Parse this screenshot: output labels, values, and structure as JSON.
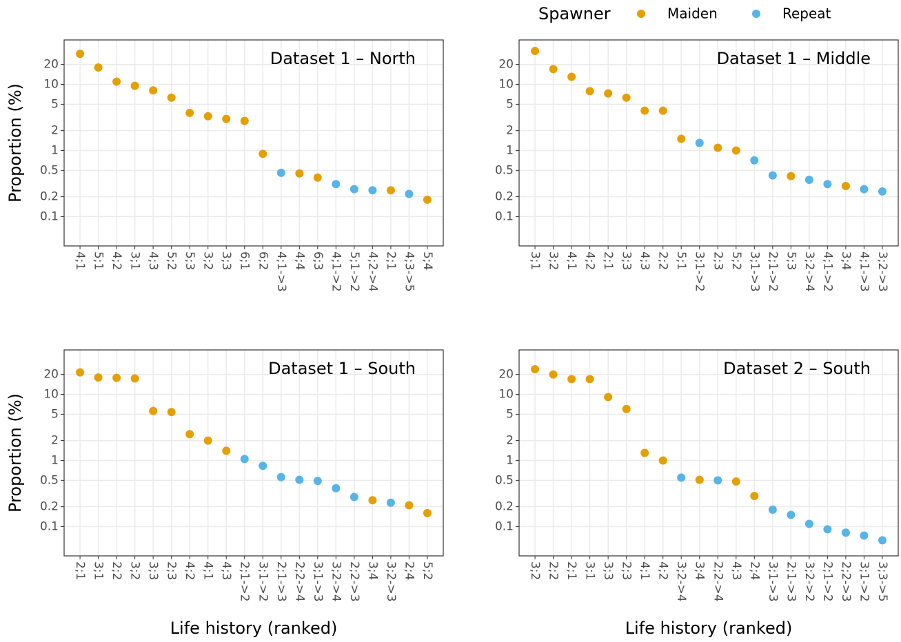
{
  "legend": {
    "title": "Spawner",
    "entries": [
      {
        "name": "Maiden",
        "color": "#E69F00"
      },
      {
        "name": "Repeat",
        "color": "#56B4E9"
      }
    ]
  },
  "chart_data": [
    {
      "type": "dot",
      "title": "Dataset 1 – North",
      "ylabel": "Proportion (%)",
      "categories": [
        "4;1",
        "5;1",
        "4;2",
        "3;1",
        "4;3",
        "5;2",
        "5;3",
        "3;2",
        "3;3",
        "6;1",
        "6;2",
        "4;1->3",
        "4;4",
        "6;3",
        "4;1->2",
        "5;1->2",
        "4;2->4",
        "2;1",
        "4;3->5",
        "5;4"
      ],
      "values": [
        29,
        18,
        11,
        9.5,
        8.1,
        6.3,
        3.7,
        3.3,
        3.0,
        2.8,
        0.89,
        0.46,
        0.45,
        0.39,
        0.31,
        0.26,
        0.25,
        0.25,
        0.22,
        0.18
      ],
      "spawner": [
        "Maiden",
        "Maiden",
        "Maiden",
        "Maiden",
        "Maiden",
        "Maiden",
        "Maiden",
        "Maiden",
        "Maiden",
        "Maiden",
        "Maiden",
        "Repeat",
        "Maiden",
        "Maiden",
        "Repeat",
        "Repeat",
        "Repeat",
        "Maiden",
        "Repeat",
        "Maiden"
      ],
      "ylim": [
        0.036,
        47
      ],
      "yticks": [
        0.1,
        0.2,
        0.5,
        1,
        2,
        5,
        10,
        20
      ],
      "log_y": true,
      "grid": true
    },
    {
      "type": "dot",
      "title": "Dataset 1 – Middle",
      "categories": [
        "3;1",
        "3;2",
        "4;1",
        "4;2",
        "2;1",
        "3;3",
        "4;3",
        "2;2",
        "5;1",
        "3;1->2",
        "2;3",
        "5;2",
        "3;1->3",
        "2;1->2",
        "5;3",
        "3;2->4",
        "4;1->2",
        "3;4",
        "4;1->3",
        "3;2->3"
      ],
      "values": [
        32,
        17,
        13,
        7.9,
        7.3,
        6.3,
        4.0,
        4.0,
        1.5,
        1.3,
        1.1,
        1.0,
        0.71,
        0.42,
        0.41,
        0.36,
        0.31,
        0.29,
        0.26,
        0.24
      ],
      "spawner": [
        "Maiden",
        "Maiden",
        "Maiden",
        "Maiden",
        "Maiden",
        "Maiden",
        "Maiden",
        "Maiden",
        "Maiden",
        "Repeat",
        "Maiden",
        "Maiden",
        "Repeat",
        "Repeat",
        "Maiden",
        "Repeat",
        "Repeat",
        "Maiden",
        "Repeat",
        "Repeat"
      ],
      "ylim": [
        0.036,
        47
      ],
      "yticks": [
        0.1,
        0.2,
        0.5,
        1,
        2,
        5,
        10,
        20
      ],
      "log_y": true,
      "grid": true
    },
    {
      "type": "dot",
      "title": "Dataset 1 – South",
      "ylabel": "Proportion (%)",
      "xlabel": "Life history (ranked)",
      "categories": [
        "2;1",
        "3;1",
        "2;2",
        "3;2",
        "3;3",
        "2;3",
        "4;2",
        "4;1",
        "4;3",
        "2;1->2",
        "3;1->2",
        "2;1->3",
        "2;2->4",
        "3;1->3",
        "3;2->4",
        "2;2->3",
        "3;4",
        "3;2->3",
        "2;4",
        "5;2"
      ],
      "values": [
        21.5,
        18,
        17.8,
        17.4,
        5.6,
        5.4,
        2.5,
        2.0,
        1.4,
        1.05,
        0.83,
        0.56,
        0.51,
        0.49,
        0.38,
        0.28,
        0.25,
        0.23,
        0.21,
        0.16
      ],
      "spawner": [
        "Maiden",
        "Maiden",
        "Maiden",
        "Maiden",
        "Maiden",
        "Maiden",
        "Maiden",
        "Maiden",
        "Maiden",
        "Repeat",
        "Repeat",
        "Repeat",
        "Repeat",
        "Repeat",
        "Repeat",
        "Repeat",
        "Maiden",
        "Repeat",
        "Maiden",
        "Maiden"
      ],
      "ylim": [
        0.036,
        47
      ],
      "yticks": [
        0.1,
        0.2,
        0.5,
        1,
        2,
        5,
        10,
        20
      ],
      "log_y": true,
      "grid": true
    },
    {
      "type": "dot",
      "title": "Dataset 2 – South",
      "xlabel": "Life history (ranked)",
      "categories": [
        "3;2",
        "2;2",
        "2;1",
        "3;1",
        "3;3",
        "2;3",
        "4;1",
        "4;2",
        "3;2->4",
        "3;4",
        "2;2->4",
        "4;3",
        "2;4",
        "3;1->3",
        "2;1->3",
        "3;2->2",
        "2;1->2",
        "2;2->3",
        "3;1->2",
        "3;3->5"
      ],
      "values": [
        24,
        20,
        17,
        17,
        9.1,
        6.0,
        1.3,
        1.0,
        0.55,
        0.51,
        0.5,
        0.48,
        0.29,
        0.18,
        0.15,
        0.11,
        0.091,
        0.081,
        0.073,
        0.062
      ],
      "spawner": [
        "Maiden",
        "Maiden",
        "Maiden",
        "Maiden",
        "Maiden",
        "Maiden",
        "Maiden",
        "Maiden",
        "Repeat",
        "Maiden",
        "Repeat",
        "Maiden",
        "Maiden",
        "Repeat",
        "Repeat",
        "Repeat",
        "Repeat",
        "Repeat",
        "Repeat",
        "Repeat"
      ],
      "ylim": [
        0.036,
        47
      ],
      "yticks": [
        0.1,
        0.2,
        0.5,
        1,
        2,
        5,
        10,
        20
      ],
      "log_y": true,
      "grid": true
    }
  ]
}
